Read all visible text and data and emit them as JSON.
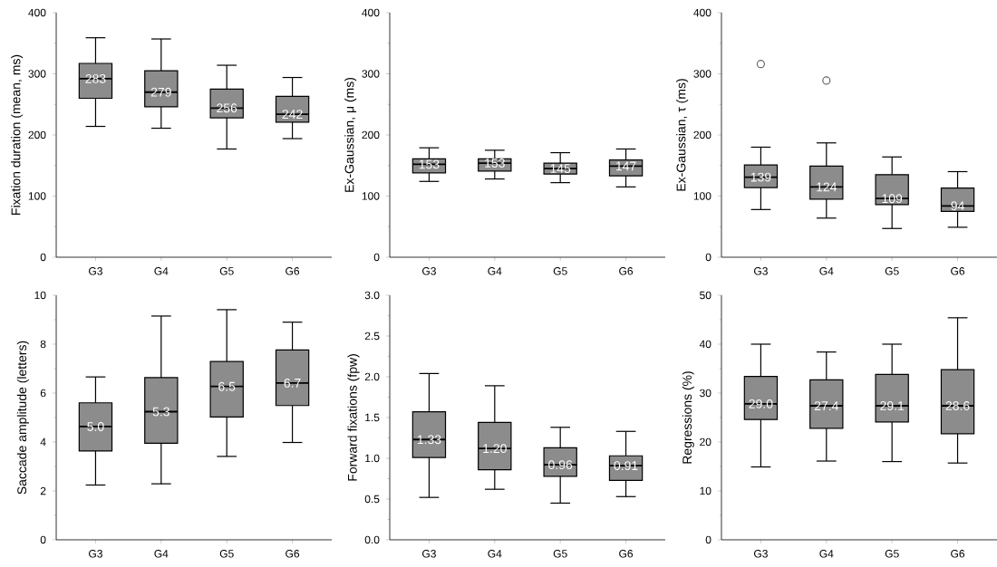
{
  "chart_data": [
    {
      "type": "box",
      "ylabel": "Fixation duration (mean, ms)",
      "categories": [
        "G3",
        "G4",
        "G5",
        "G6"
      ],
      "color": "#8c8c8c",
      "ylim": [
        0,
        400
      ],
      "yticks": [
        0,
        100,
        200,
        300,
        400
      ],
      "boxes": [
        {
          "low": 214,
          "q1": 260,
          "median": 292,
          "q3": 317,
          "high": 359
        },
        {
          "low": 211,
          "q1": 246,
          "median": 270,
          "q3": 305,
          "high": 357
        },
        {
          "low": 177,
          "q1": 228,
          "median": 244,
          "q3": 275,
          "high": 314
        },
        {
          "low": 194,
          "q1": 221,
          "median": 234,
          "q3": 263,
          "high": 294
        }
      ],
      "value_labels": [
        "283",
        "279",
        "256",
        "242"
      ]
    },
    {
      "type": "box",
      "ylabel": "Ex-Gaussian, μ (ms)",
      "categories": [
        "G3",
        "G4",
        "G5",
        "G6"
      ],
      "color": "#8c8c8c",
      "ylim": [
        0,
        400
      ],
      "yticks": [
        0,
        100,
        200,
        300,
        400
      ],
      "boxes": [
        {
          "low": 124,
          "q1": 138,
          "median": 152,
          "q3": 161,
          "high": 179
        },
        {
          "low": 128,
          "q1": 141,
          "median": 154,
          "q3": 161,
          "high": 175
        },
        {
          "low": 122,
          "q1": 136,
          "median": 145,
          "q3": 154,
          "high": 171
        },
        {
          "low": 115,
          "q1": 133,
          "median": 149,
          "q3": 159,
          "high": 177
        }
      ],
      "value_labels": [
        "153",
        "153",
        "145",
        "147"
      ]
    },
    {
      "type": "box",
      "ylabel": "Ex-Gaussian, τ (ms)",
      "categories": [
        "G3",
        "G4",
        "G5",
        "G6"
      ],
      "color": "#8c8c8c",
      "ylim": [
        0,
        400
      ],
      "yticks": [
        0,
        100,
        200,
        300,
        400
      ],
      "boxes": [
        {
          "low": 78,
          "q1": 114,
          "median": 131,
          "q3": 151,
          "high": 180,
          "outliers": [
            316
          ]
        },
        {
          "low": 64,
          "q1": 95,
          "median": 115,
          "q3": 149,
          "high": 187,
          "outliers": [
            289
          ]
        },
        {
          "low": 47,
          "q1": 86,
          "median": 96,
          "q3": 135,
          "high": 164
        },
        {
          "low": 49,
          "q1": 75,
          "median": 84,
          "q3": 113,
          "high": 140
        }
      ],
      "value_labels": [
        "139",
        "124",
        "109",
        "94"
      ]
    },
    {
      "type": "box",
      "ylabel": "Saccade amplitude (letters)",
      "categories": [
        "G3",
        "G4",
        "G5",
        "G6"
      ],
      "color": "#8c8c8c",
      "ylim": [
        0,
        10
      ],
      "yticks": [
        0,
        2,
        4,
        6,
        8,
        10
      ],
      "boxes": [
        {
          "low": 2.24,
          "q1": 3.63,
          "median": 4.63,
          "q3": 5.6,
          "high": 6.66
        },
        {
          "low": 2.29,
          "q1": 3.95,
          "median": 5.24,
          "q3": 6.63,
          "high": 9.15
        },
        {
          "low": 3.41,
          "q1": 5.02,
          "median": 6.27,
          "q3": 7.29,
          "high": 9.41
        },
        {
          "low": 3.98,
          "q1": 5.49,
          "median": 6.41,
          "q3": 7.76,
          "high": 8.9
        }
      ],
      "value_labels": [
        "5.0",
        "5.3",
        "6.5",
        "6.7"
      ]
    },
    {
      "type": "box",
      "ylabel": "Forward fixations (fpw)",
      "categories": [
        "G3",
        "G4",
        "G5",
        "G6"
      ],
      "color": "#8c8c8c",
      "ylim": [
        0,
        3
      ],
      "yticks": [
        {
          "value": 0,
          "label": "0.0"
        },
        {
          "value": 0.5,
          "label": "0.5"
        },
        {
          "value": 1,
          "label": "1.0"
        },
        {
          "value": 1.5,
          "label": "1.5"
        },
        {
          "value": 2,
          "label": "2.0"
        },
        {
          "value": 2.5,
          "label": "2.5"
        },
        {
          "value": 3,
          "label": "3.0"
        }
      ],
      "boxes": [
        {
          "low": 0.52,
          "q1": 1.01,
          "median": 1.23,
          "q3": 1.57,
          "high": 2.04
        },
        {
          "low": 0.62,
          "q1": 0.86,
          "median": 1.12,
          "q3": 1.44,
          "high": 1.89
        },
        {
          "low": 0.45,
          "q1": 0.78,
          "median": 0.92,
          "q3": 1.13,
          "high": 1.38
        },
        {
          "low": 0.53,
          "q1": 0.73,
          "median": 0.91,
          "q3": 1.03,
          "high": 1.33
        }
      ],
      "value_labels": [
        "1.33",
        "1.20",
        "0.96",
        "0.91"
      ]
    },
    {
      "type": "box",
      "ylabel": "Regressions (%)",
      "categories": [
        "G3",
        "G4",
        "G5",
        "G6"
      ],
      "color": "#8c8c8c",
      "ylim": [
        0,
        50
      ],
      "yticks": [
        0,
        10,
        20,
        30,
        40,
        50
      ],
      "boxes": [
        {
          "low": 14.9,
          "q1": 24.6,
          "median": 27.8,
          "q3": 33.4,
          "high": 40
        },
        {
          "low": 16.1,
          "q1": 22.8,
          "median": 27.4,
          "q3": 32.7,
          "high": 38.4
        },
        {
          "low": 16.0,
          "q1": 24.1,
          "median": 27.4,
          "q3": 33.8,
          "high": 40
        },
        {
          "low": 15.7,
          "q1": 21.7,
          "median": 27.4,
          "q3": 34.8,
          "high": 45.4
        }
      ],
      "value_labels": [
        "29.0",
        "27.4",
        "29.1",
        "28.6"
      ]
    }
  ]
}
